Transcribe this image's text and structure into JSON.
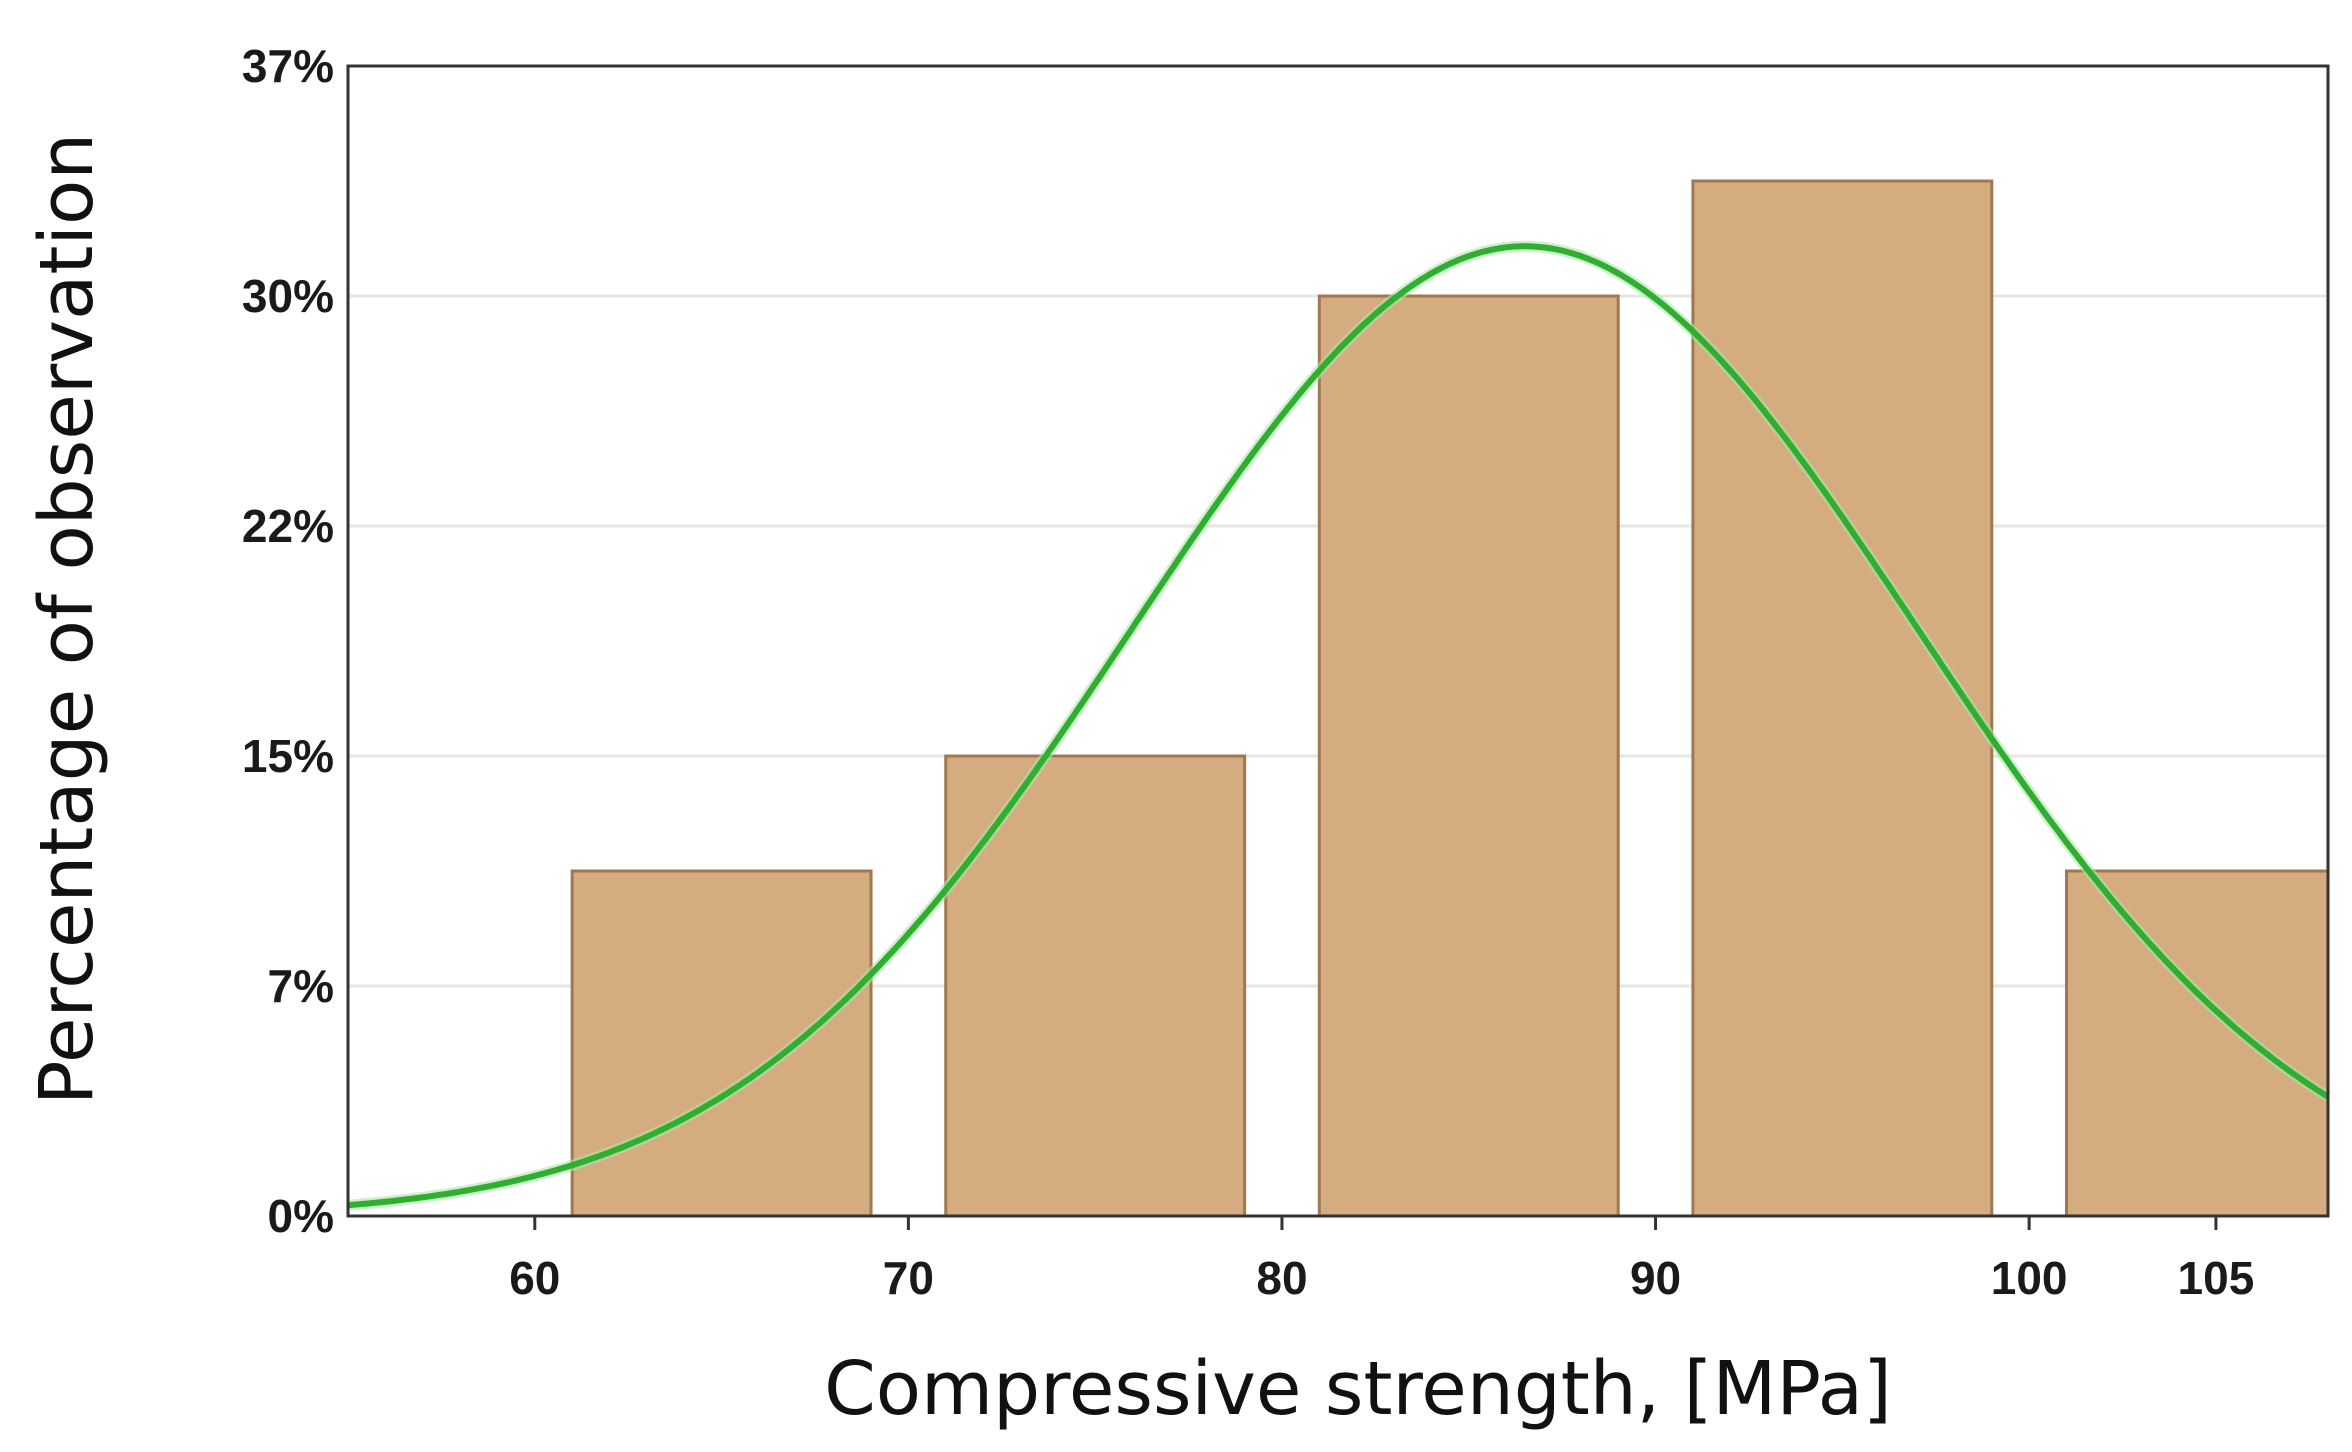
{
  "chart_data": {
    "type": "bar",
    "title": "",
    "xlabel": "Compressive strength, [MPa]",
    "ylabel": "Percentage of observation",
    "xlim": [
      55,
      108
    ],
    "ylim": [
      0,
      37
    ],
    "x_ticks": [
      60,
      70,
      80,
      90,
      100,
      105
    ],
    "x_tick_labels": [
      "60",
      "70",
      "80",
      "90",
      "100",
      "105"
    ],
    "y_ticks": [
      0,
      7.4,
      14.8,
      22.2,
      29.6,
      37
    ],
    "y_tick_labels": [
      "0%",
      "7%",
      "15%",
      "22%",
      "30%",
      "37%"
    ],
    "grid": true,
    "bars": [
      {
        "x_start": 61,
        "x_end": 69,
        "value": 11.1
      },
      {
        "x_start": 71,
        "x_end": 79,
        "value": 14.8
      },
      {
        "x_start": 81,
        "x_end": 89,
        "value": 29.6
      },
      {
        "x_start": 91,
        "x_end": 99,
        "value": 33.3
      },
      {
        "x_start": 101,
        "x_end": 109,
        "value": 11.1
      }
    ],
    "fit_curve": {
      "type": "normal",
      "mean": 86.5,
      "sd": 10.5,
      "peak": 31.2
    },
    "colors": {
      "bar_fill": "#d4ac80",
      "bar_stroke": "#a0784f",
      "curve": "#2fae2f",
      "grid": "#e6e6e6",
      "frame": "#333333"
    }
  }
}
